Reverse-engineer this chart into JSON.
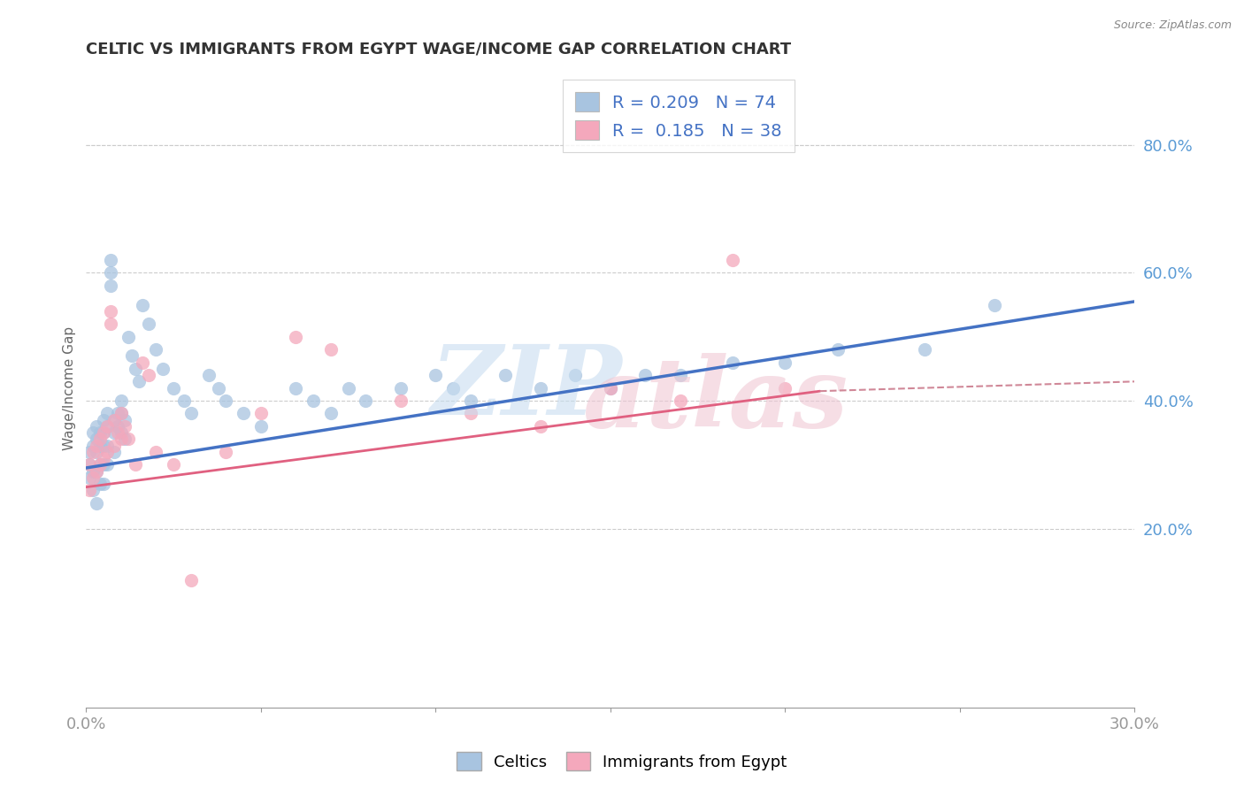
{
  "title": "CELTIC VS IMMIGRANTS FROM EGYPT WAGE/INCOME GAP CORRELATION CHART",
  "source_text": "Source: ZipAtlas.com",
  "ylabel": "Wage/Income Gap",
  "xlim": [
    0.0,
    0.3
  ],
  "ylim": [
    -0.08,
    0.92
  ],
  "ytick_labels_right": [
    "20.0%",
    "40.0%",
    "60.0%",
    "80.0%"
  ],
  "ytick_vals_right": [
    0.2,
    0.4,
    0.6,
    0.8
  ],
  "celtics_color": "#a8c4e0",
  "egypt_color": "#f4a8bc",
  "celtics_line_color": "#4472c4",
  "egypt_line_color": "#e06080",
  "celtics_R": 0.209,
  "celtics_N": 74,
  "egypt_R": 0.185,
  "egypt_N": 38,
  "legend_label_celtics": "Celtics",
  "legend_label_egypt": "Immigrants from Egypt",
  "celtics_x": [
    0.001,
    0.001,
    0.001,
    0.002,
    0.002,
    0.002,
    0.002,
    0.003,
    0.003,
    0.003,
    0.003,
    0.003,
    0.004,
    0.004,
    0.004,
    0.004,
    0.005,
    0.005,
    0.005,
    0.005,
    0.005,
    0.006,
    0.006,
    0.006,
    0.006,
    0.007,
    0.007,
    0.007,
    0.008,
    0.008,
    0.008,
    0.009,
    0.009,
    0.01,
    0.01,
    0.01,
    0.011,
    0.011,
    0.012,
    0.013,
    0.014,
    0.015,
    0.016,
    0.018,
    0.02,
    0.022,
    0.025,
    0.028,
    0.03,
    0.035,
    0.038,
    0.04,
    0.045,
    0.05,
    0.06,
    0.065,
    0.07,
    0.075,
    0.08,
    0.09,
    0.1,
    0.105,
    0.11,
    0.12,
    0.13,
    0.14,
    0.15,
    0.16,
    0.17,
    0.185,
    0.2,
    0.215,
    0.24,
    0.26
  ],
  "celtics_y": [
    0.32,
    0.3,
    0.28,
    0.35,
    0.33,
    0.29,
    0.26,
    0.36,
    0.34,
    0.32,
    0.29,
    0.24,
    0.35,
    0.33,
    0.3,
    0.27,
    0.37,
    0.35,
    0.33,
    0.3,
    0.27,
    0.38,
    0.36,
    0.33,
    0.3,
    0.62,
    0.6,
    0.58,
    0.37,
    0.35,
    0.32,
    0.38,
    0.36,
    0.4,
    0.38,
    0.35,
    0.37,
    0.34,
    0.5,
    0.47,
    0.45,
    0.43,
    0.55,
    0.52,
    0.48,
    0.45,
    0.42,
    0.4,
    0.38,
    0.44,
    0.42,
    0.4,
    0.38,
    0.36,
    0.42,
    0.4,
    0.38,
    0.42,
    0.4,
    0.42,
    0.44,
    0.42,
    0.4,
    0.44,
    0.42,
    0.44,
    0.42,
    0.44,
    0.44,
    0.46,
    0.46,
    0.48,
    0.48,
    0.55
  ],
  "egypt_x": [
    0.001,
    0.001,
    0.002,
    0.002,
    0.003,
    0.003,
    0.004,
    0.004,
    0.005,
    0.005,
    0.006,
    0.006,
    0.007,
    0.007,
    0.008,
    0.008,
    0.009,
    0.01,
    0.01,
    0.011,
    0.012,
    0.014,
    0.016,
    0.018,
    0.02,
    0.025,
    0.03,
    0.04,
    0.05,
    0.06,
    0.07,
    0.09,
    0.11,
    0.13,
    0.15,
    0.17,
    0.185,
    0.2
  ],
  "egypt_y": [
    0.3,
    0.26,
    0.32,
    0.28,
    0.33,
    0.29,
    0.34,
    0.3,
    0.35,
    0.31,
    0.36,
    0.32,
    0.54,
    0.52,
    0.37,
    0.33,
    0.35,
    0.38,
    0.34,
    0.36,
    0.34,
    0.3,
    0.46,
    0.44,
    0.32,
    0.3,
    0.12,
    0.32,
    0.38,
    0.5,
    0.48,
    0.4,
    0.38,
    0.36,
    0.42,
    0.4,
    0.62,
    0.42
  ]
}
